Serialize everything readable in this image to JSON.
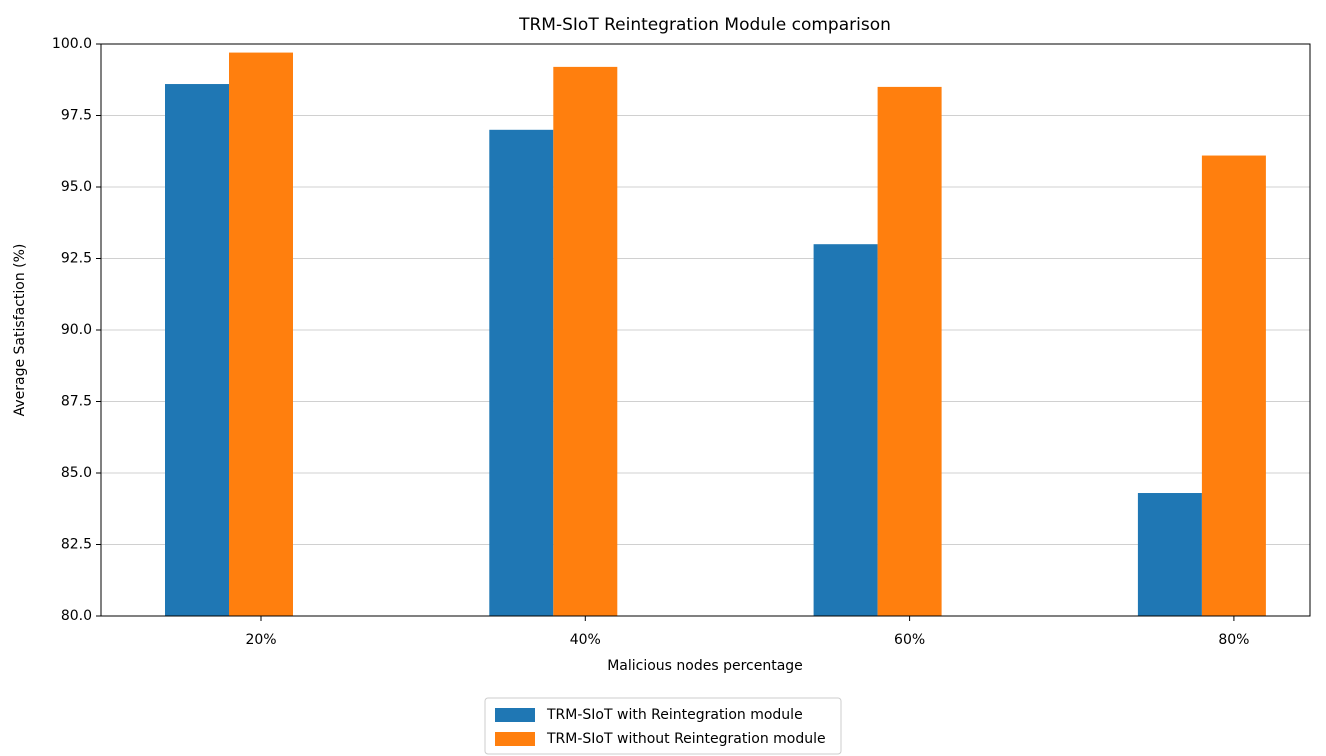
{
  "chart_data": {
    "type": "bar",
    "title": "TRM-SIoT Reintegration Module comparison",
    "x_label": "Malicious nodes percentage",
    "y_label": "Average Satisfaction (%)",
    "categories": [
      "20%",
      "40%",
      "60%",
      "80%"
    ],
    "series": [
      {
        "name": "TRM-SIoT with Reintegration module",
        "color": "#1f77b4",
        "values": [
          98.6,
          97.0,
          93.0,
          84.3
        ]
      },
      {
        "name": "TRM-SIoT without Reintegration module",
        "color": "#ff7f0e",
        "values": [
          99.7,
          99.2,
          98.5,
          96.1
        ]
      }
    ],
    "ylim": [
      80,
      100
    ],
    "yticks": [
      {
        "value": 80,
        "label": "80.0"
      },
      82.5,
      {
        "value": 85,
        "label": "85.0"
      },
      87.5,
      {
        "value": 90,
        "label": "90.0"
      },
      92.5,
      {
        "value": 95,
        "label": "95.0"
      },
      97.5,
      {
        "value": 100,
        "label": "100.0"
      }
    ],
    "grid": true,
    "legend": "below"
  }
}
